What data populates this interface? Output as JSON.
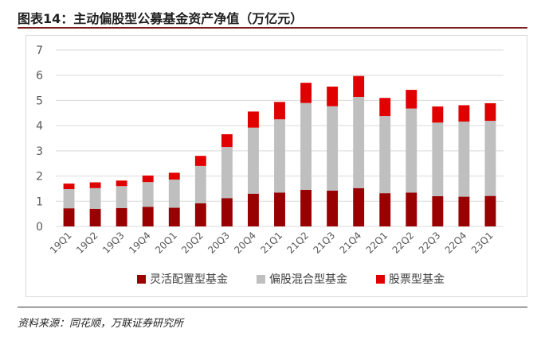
{
  "header": {
    "title": "图表14：主动偏股型公募基金资产净值（万亿元）"
  },
  "footer": {
    "source": "资料来源：同花顺，万联证券研究所"
  },
  "chart_data": {
    "type": "bar",
    "stacked": true,
    "title": "",
    "xlabel": "",
    "ylabel": "",
    "ylim": [
      0,
      7
    ],
    "yticks": [
      0,
      1,
      2,
      3,
      4,
      5,
      6,
      7
    ],
    "grid": true,
    "legend_position": "bottom",
    "categories": [
      "19Q1",
      "19Q2",
      "19Q3",
      "19Q4",
      "20Q1",
      "20Q2",
      "20Q3",
      "20Q4",
      "21Q1",
      "21Q2",
      "21Q3",
      "21Q4",
      "22Q1",
      "22Q2",
      "22Q3",
      "22Q4",
      "23Q1"
    ],
    "series": [
      {
        "name": "灵活配置型基金",
        "color": "#990000",
        "values": [
          0.72,
          0.7,
          0.73,
          0.78,
          0.74,
          0.92,
          1.12,
          1.3,
          1.34,
          1.45,
          1.42,
          1.52,
          1.32,
          1.34,
          1.2,
          1.18,
          1.21
        ]
      },
      {
        "name": "偏股混合型基金",
        "color": "#bfbfbf",
        "values": [
          0.76,
          0.82,
          0.87,
          0.98,
          1.12,
          1.48,
          2.03,
          2.62,
          2.91,
          3.45,
          3.35,
          3.62,
          3.06,
          3.34,
          2.92,
          2.98,
          2.98
        ]
      },
      {
        "name": "股票型基金",
        "color": "#e00000",
        "values": [
          0.22,
          0.23,
          0.22,
          0.26,
          0.27,
          0.4,
          0.51,
          0.64,
          0.69,
          0.8,
          0.78,
          0.83,
          0.72,
          0.74,
          0.64,
          0.65,
          0.7
        ]
      }
    ]
  }
}
